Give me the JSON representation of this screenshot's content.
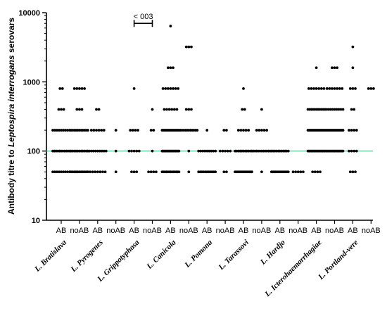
{
  "chart_data": {
    "type": "scatter",
    "ylabel": "Antibody titre to Leptospira interrogans serovars",
    "ylabel_parts": {
      "prefix": "Antibody titre to ",
      "italic": "Leptospira interrogans",
      "suffix": " serovars"
    },
    "y_scale": "log10",
    "ylim": [
      10,
      10000
    ],
    "y_ticks": [
      "10",
      "100",
      "1000",
      "10000"
    ],
    "x_ticks": [
      "AB",
      "noAB",
      "AB",
      "noAB",
      "AB",
      "noAB",
      "AB",
      "noAB",
      "AB",
      "noAB",
      "AB",
      "noAB",
      "AB",
      "noAB",
      "AB",
      "noAB",
      "AB",
      "noAB"
    ],
    "groups": [
      "L. Bratislava",
      "L. Pyrogenes",
      "L. Grippotyphosa",
      "L. Canicola",
      "L. Pomona",
      "L. Tarassovi",
      "L. Hardjo",
      "L. Icterohaemorrhagiae",
      "L. Portland-vere"
    ],
    "reference_line": {
      "y": 100,
      "color": "#66cc99"
    },
    "annotation": {
      "text": "< 003",
      "from_index": 4,
      "to_index": 5,
      "y": 7000
    },
    "colors": {
      "points": "#000000",
      "axis": "#000000"
    },
    "series": [
      {
        "category_index": 0,
        "values": [
          {
            "v": 50,
            "n": 9
          },
          {
            "v": 100,
            "n": 11
          },
          {
            "v": 200,
            "n": 9
          },
          {
            "v": 400,
            "n": 3
          },
          {
            "v": 800,
            "n": 2
          }
        ]
      },
      {
        "category_index": 1,
        "values": [
          {
            "v": 50,
            "n": 11
          },
          {
            "v": 100,
            "n": 11
          },
          {
            "v": 200,
            "n": 11
          },
          {
            "v": 400,
            "n": 3
          },
          {
            "v": 800,
            "n": 5
          }
        ]
      },
      {
        "category_index": 2,
        "values": [
          {
            "v": 50,
            "n": 7
          },
          {
            "v": 100,
            "n": 9
          },
          {
            "v": 200,
            "n": 6
          },
          {
            "v": 400,
            "n": 2
          }
        ]
      },
      {
        "category_index": 3,
        "values": [
          {
            "v": 50,
            "n": 1
          },
          {
            "v": 100,
            "n": 1
          },
          {
            "v": 200,
            "n": 1
          }
        ]
      },
      {
        "category_index": 4,
        "values": [
          {
            "v": 50,
            "n": 3
          },
          {
            "v": 100,
            "n": 5
          },
          {
            "v": 200,
            "n": 4
          },
          {
            "v": 800,
            "n": 1
          }
        ]
      },
      {
        "category_index": 5,
        "values": [
          {
            "v": 50,
            "n": 4
          },
          {
            "v": 100,
            "n": 1
          },
          {
            "v": 200,
            "n": 2
          },
          {
            "v": 400,
            "n": 1
          }
        ]
      },
      {
        "category_index": 6,
        "values": [
          {
            "v": 50,
            "n": 13
          },
          {
            "v": 100,
            "n": 15
          },
          {
            "v": 200,
            "n": 15
          },
          {
            "v": 400,
            "n": 6
          },
          {
            "v": 800,
            "n": 7
          },
          {
            "v": 1600,
            "n": 3
          },
          {
            "v": 6400,
            "n": 1
          }
        ]
      },
      {
        "category_index": 7,
        "values": [
          {
            "v": 50,
            "n": 1
          },
          {
            "v": 100,
            "n": 1
          },
          {
            "v": 200,
            "n": 11
          },
          {
            "v": 400,
            "n": 3
          },
          {
            "v": 3200,
            "n": 3
          }
        ]
      },
      {
        "category_index": 8,
        "values": [
          {
            "v": 50,
            "n": 11
          },
          {
            "v": 100,
            "n": 9
          },
          {
            "v": 200,
            "n": 1
          }
        ]
      },
      {
        "category_index": 9,
        "values": [
          {
            "v": 50,
            "n": 2
          },
          {
            "v": 100,
            "n": 5
          },
          {
            "v": 200,
            "n": 2
          }
        ]
      },
      {
        "category_index": 10,
        "values": [
          {
            "v": 50,
            "n": 13
          },
          {
            "v": 100,
            "n": 11
          },
          {
            "v": 200,
            "n": 5
          },
          {
            "v": 400,
            "n": 2
          },
          {
            "v": 800,
            "n": 1
          }
        ]
      },
      {
        "category_index": 11,
        "values": [
          {
            "v": 50,
            "n": 1
          },
          {
            "v": 100,
            "n": 11
          },
          {
            "v": 200,
            "n": 5
          },
          {
            "v": 400,
            "n": 1
          }
        ]
      },
      {
        "category_index": 12,
        "values": [
          {
            "v": 50,
            "n": 13
          },
          {
            "v": 100,
            "n": 11
          }
        ]
      },
      {
        "category_index": 13,
        "values": [
          {
            "v": 50,
            "n": 5
          }
        ]
      },
      {
        "category_index": 14,
        "values": [
          {
            "v": 50,
            "n": 4
          },
          {
            "v": 100,
            "n": 15
          },
          {
            "v": 200,
            "n": 15
          },
          {
            "v": 400,
            "n": 11
          },
          {
            "v": 800,
            "n": 7
          },
          {
            "v": 1600,
            "n": 1
          }
        ]
      },
      {
        "category_index": 15,
        "values": [
          {
            "v": 100,
            "n": 15
          },
          {
            "v": 200,
            "n": 15
          },
          {
            "v": 400,
            "n": 9
          },
          {
            "v": 800,
            "n": 7
          },
          {
            "v": 1600,
            "n": 3
          }
        ]
      },
      {
        "category_index": 16,
        "values": [
          {
            "v": 50,
            "n": 3
          },
          {
            "v": 100,
            "n": 4
          },
          {
            "v": 200,
            "n": 4
          },
          {
            "v": 400,
            "n": 2
          },
          {
            "v": 800,
            "n": 3
          },
          {
            "v": 1600,
            "n": 1
          },
          {
            "v": 3200,
            "n": 1
          }
        ]
      },
      {
        "category_index": 17,
        "values": [
          {
            "v": 800,
            "n": 3
          }
        ]
      }
    ]
  }
}
